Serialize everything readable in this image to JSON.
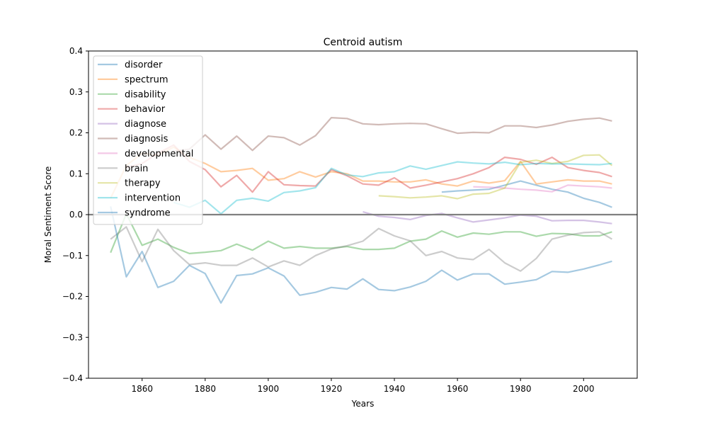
{
  "chart_data": {
    "type": "line",
    "title": "Centroid autism",
    "xlabel": "Years",
    "ylabel": "Moral Sentiment Score",
    "xlim": [
      1843,
      2017
    ],
    "ylim": [
      -0.4,
      0.4
    ],
    "xticks": [
      1860,
      1880,
      1900,
      1920,
      1940,
      1960,
      1980,
      2000
    ],
    "yticks": [
      -0.4,
      -0.3,
      -0.2,
      -0.1,
      0.0,
      0.1,
      0.2,
      0.3,
      0.4
    ],
    "ytick_labels": [
      "−0.4",
      "−0.3",
      "−0.2",
      "−0.1",
      "0.0",
      "0.1",
      "0.2",
      "0.3",
      "0.4"
    ],
    "zero_line": 0.0,
    "grid": false,
    "legend_position": "top-left",
    "series": [
      {
        "name": "disorder",
        "color": "#1f77b4",
        "x": [
          1955,
          1960,
          1965,
          1970,
          1975,
          1980,
          1985,
          1990,
          1995,
          2000,
          2005,
          2009
        ],
        "y": [
          0.055,
          0.058,
          0.06,
          0.062,
          0.072,
          0.082,
          0.072,
          0.062,
          0.055,
          0.04,
          0.03,
          0.018
        ]
      },
      {
        "name": "spectrum",
        "color": "#ff7f0e",
        "x": [
          1850,
          1855,
          1860,
          1865,
          1870,
          1875,
          1880,
          1885,
          1890,
          1895,
          1900,
          1905,
          1910,
          1915,
          1920,
          1925,
          1930,
          1935,
          1940,
          1945,
          1950,
          1955,
          1960,
          1965,
          1970,
          1975,
          1980,
          1985,
          1990,
          1995,
          2000,
          2005,
          2009
        ],
        "y": [
          0.04,
          0.12,
          0.15,
          0.145,
          0.165,
          0.14,
          0.125,
          0.105,
          0.108,
          0.113,
          0.084,
          0.088,
          0.105,
          0.092,
          0.105,
          0.1,
          0.082,
          0.082,
          0.08,
          0.08,
          0.085,
          0.075,
          0.07,
          0.082,
          0.077,
          0.083,
          0.13,
          0.075,
          0.08,
          0.085,
          0.082,
          0.082,
          0.075
        ]
      },
      {
        "name": "disability",
        "color": "#2ca02c",
        "x": [
          1850,
          1855,
          1860,
          1865,
          1870,
          1875,
          1880,
          1885,
          1890,
          1895,
          1900,
          1905,
          1910,
          1915,
          1920,
          1925,
          1930,
          1935,
          1940,
          1945,
          1950,
          1955,
          1960,
          1965,
          1970,
          1975,
          1980,
          1985,
          1990,
          1995,
          2000,
          2005,
          2009
        ],
        "y": [
          -0.093,
          0.002,
          -0.075,
          -0.06,
          -0.08,
          -0.095,
          -0.092,
          -0.088,
          -0.072,
          -0.087,
          -0.065,
          -0.082,
          -0.078,
          -0.082,
          -0.082,
          -0.078,
          -0.085,
          -0.085,
          -0.082,
          -0.065,
          -0.06,
          -0.04,
          -0.055,
          -0.045,
          -0.048,
          -0.042,
          -0.042,
          -0.053,
          -0.046,
          -0.047,
          -0.052,
          -0.052,
          -0.042
        ]
      },
      {
        "name": "behavior",
        "color": "#d62728",
        "x": [
          1855,
          1860,
          1865,
          1870,
          1875,
          1880,
          1885,
          1890,
          1895,
          1900,
          1905,
          1910,
          1915,
          1920,
          1925,
          1930,
          1935,
          1940,
          1945,
          1950,
          1955,
          1960,
          1965,
          1970,
          1975,
          1980,
          1985,
          1990,
          1995,
          2000,
          2005,
          2009
        ],
        "y": [
          0.115,
          0.125,
          0.15,
          0.17,
          0.13,
          0.11,
          0.068,
          0.096,
          0.055,
          0.105,
          0.073,
          0.071,
          0.07,
          0.11,
          0.095,
          0.075,
          0.072,
          0.09,
          0.065,
          0.072,
          0.08,
          0.088,
          0.1,
          0.115,
          0.14,
          0.135,
          0.123,
          0.14,
          0.115,
          0.108,
          0.103,
          0.093
        ]
      },
      {
        "name": "diagnose",
        "color": "#9467bd",
        "x": [
          1930,
          1935,
          1940,
          1945,
          1950,
          1955,
          1960,
          1965,
          1970,
          1975,
          1980,
          1985,
          1990,
          1995,
          2000,
          2005,
          2009
        ],
        "y": [
          0.007,
          -0.004,
          -0.007,
          -0.012,
          -0.002,
          0.003,
          -0.008,
          -0.018,
          -0.013,
          -0.008,
          -0.001,
          -0.004,
          -0.015,
          -0.014,
          -0.014,
          -0.018,
          -0.022
        ]
      },
      {
        "name": "diagnosis",
        "color": "#8c564b",
        "x": [
          1870,
          1875,
          1880,
          1885,
          1890,
          1895,
          1900,
          1905,
          1910,
          1915,
          1920,
          1925,
          1930,
          1935,
          1940,
          1945,
          1950,
          1955,
          1960,
          1965,
          1970,
          1975,
          1980,
          1985,
          1990,
          1995,
          2000,
          2005,
          2009
        ],
        "y": [
          0.155,
          0.16,
          0.195,
          0.16,
          0.192,
          0.157,
          0.192,
          0.188,
          0.17,
          0.193,
          0.237,
          0.235,
          0.222,
          0.22,
          0.222,
          0.223,
          0.222,
          0.21,
          0.199,
          0.201,
          0.2,
          0.217,
          0.217,
          0.213,
          0.219,
          0.228,
          0.233,
          0.236,
          0.229
        ]
      },
      {
        "name": "developmental",
        "color": "#e377c2",
        "x": [
          1965,
          1970,
          1975,
          1980,
          1985,
          1990,
          1995,
          2000,
          2005,
          2009
        ],
        "y": [
          0.068,
          0.067,
          0.065,
          0.062,
          0.06,
          0.056,
          0.072,
          0.07,
          0.068,
          0.065
        ]
      },
      {
        "name": "brain",
        "color": "#7f7f7f",
        "x": [
          1850,
          1855,
          1860,
          1865,
          1870,
          1875,
          1880,
          1885,
          1890,
          1895,
          1900,
          1905,
          1910,
          1915,
          1920,
          1925,
          1930,
          1935,
          1940,
          1945,
          1950,
          1955,
          1960,
          1965,
          1970,
          1975,
          1980,
          1985,
          1990,
          1995,
          2000,
          2005,
          2009
        ],
        "y": [
          -0.06,
          -0.03,
          -0.115,
          -0.036,
          -0.088,
          -0.122,
          -0.118,
          -0.124,
          -0.124,
          -0.106,
          -0.128,
          -0.113,
          -0.124,
          -0.1,
          -0.084,
          -0.076,
          -0.065,
          -0.034,
          -0.052,
          -0.064,
          -0.1,
          -0.09,
          -0.106,
          -0.11,
          -0.085,
          -0.118,
          -0.138,
          -0.107,
          -0.06,
          -0.05,
          -0.044,
          -0.042,
          -0.06
        ]
      },
      {
        "name": "therapy",
        "color": "#bcbd22",
        "x": [
          1935,
          1940,
          1945,
          1950,
          1955,
          1960,
          1965,
          1970,
          1975,
          1980,
          1985,
          1990,
          1995,
          2000,
          2005,
          2009
        ],
        "y": [
          0.046,
          0.044,
          0.041,
          0.043,
          0.046,
          0.039,
          0.05,
          0.052,
          0.065,
          0.128,
          0.133,
          0.125,
          0.13,
          0.145,
          0.146,
          0.12
        ]
      },
      {
        "name": "intervention",
        "color": "#17becf",
        "x": [
          1870,
          1875,
          1880,
          1885,
          1890,
          1895,
          1900,
          1905,
          1910,
          1915,
          1920,
          1925,
          1930,
          1935,
          1940,
          1945,
          1950,
          1955,
          1960,
          1965,
          1970,
          1975,
          1980,
          1985,
          1990,
          1995,
          2000,
          2005,
          2009
        ],
        "y": [
          0.03,
          0.018,
          0.035,
          0.002,
          0.035,
          0.04,
          0.033,
          0.054,
          0.058,
          0.066,
          0.113,
          0.097,
          0.093,
          0.102,
          0.105,
          0.119,
          0.111,
          0.12,
          0.129,
          0.126,
          0.124,
          0.128,
          0.122,
          0.125,
          0.124,
          0.124,
          0.123,
          0.122,
          0.125
        ]
      },
      {
        "name": "syndrome",
        "color": "#1f77b4",
        "x": [
          1850,
          1855,
          1860,
          1865,
          1870,
          1875,
          1880,
          1885,
          1890,
          1895,
          1900,
          1905,
          1910,
          1915,
          1920,
          1925,
          1930,
          1935,
          1940,
          1945,
          1950,
          1955,
          1960,
          1965,
          1970,
          1975,
          1980,
          1985,
          1990,
          1995,
          2000,
          2005,
          2009
        ],
        "y": [
          0.02,
          -0.152,
          -0.09,
          -0.178,
          -0.163,
          -0.124,
          -0.144,
          -0.216,
          -0.149,
          -0.145,
          -0.13,
          -0.15,
          -0.197,
          -0.19,
          -0.178,
          -0.182,
          -0.157,
          -0.183,
          -0.186,
          -0.177,
          -0.163,
          -0.136,
          -0.16,
          -0.145,
          -0.145,
          -0.17,
          -0.165,
          -0.159,
          -0.139,
          -0.141,
          -0.133,
          -0.123,
          -0.114
        ]
      }
    ]
  }
}
